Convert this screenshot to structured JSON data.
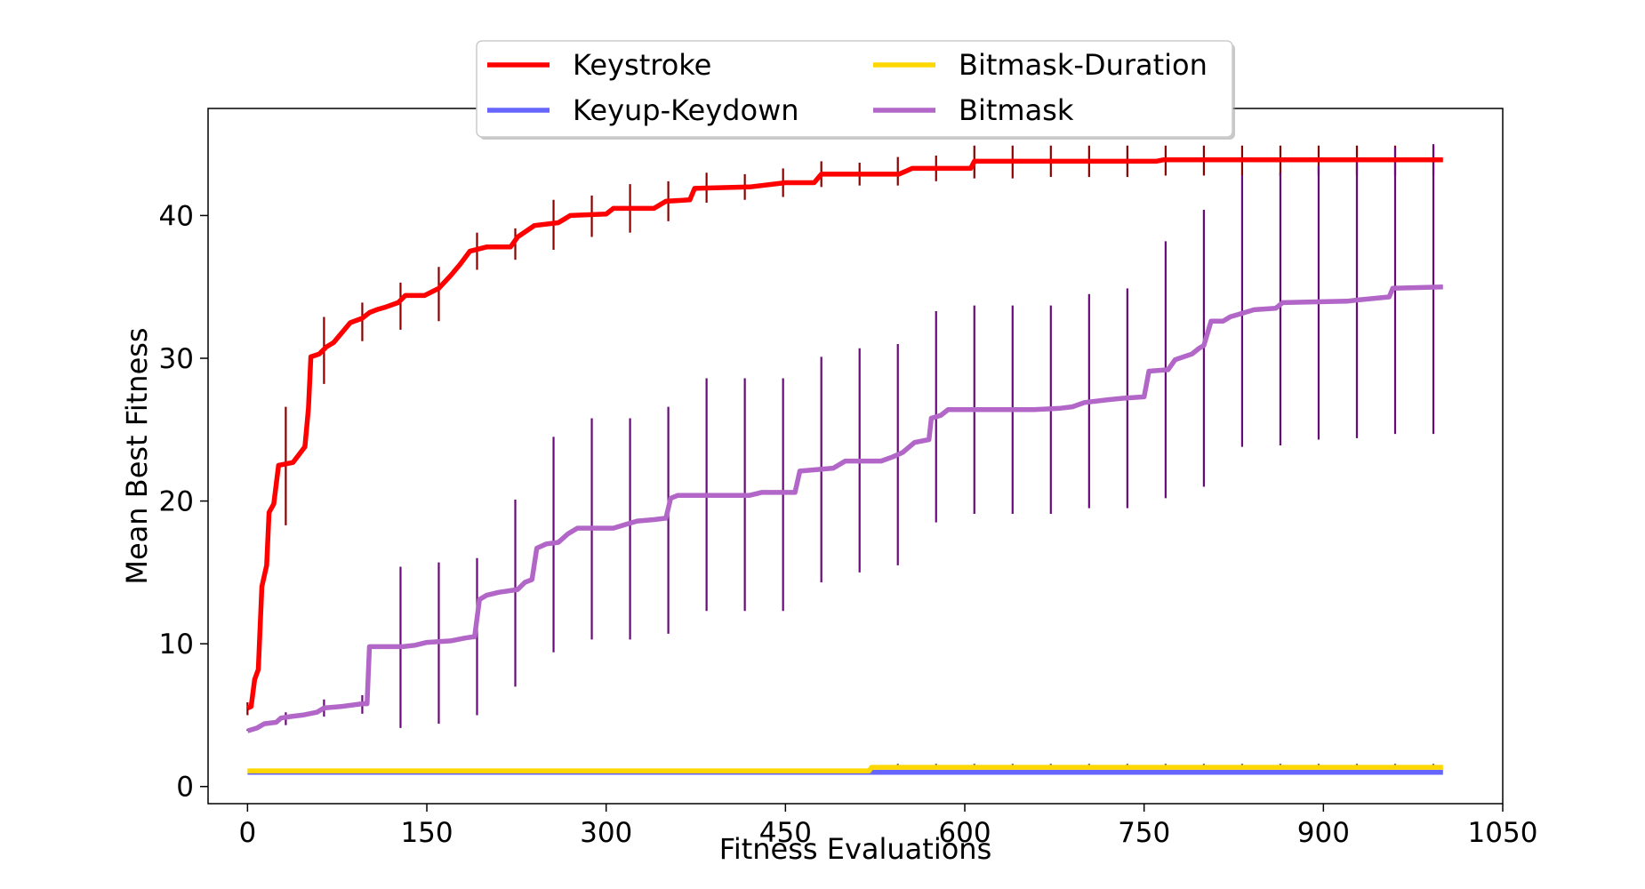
{
  "chart_data": {
    "type": "line",
    "title": "",
    "xlabel": "Fitness Evaluations",
    "ylabel": "Mean Best Fitness",
    "xlim": [
      -33,
      1050
    ],
    "ylim": [
      -1.2,
      47.5
    ],
    "xticks": [
      0,
      150,
      300,
      450,
      600,
      750,
      900,
      1050
    ],
    "yticks": [
      0,
      10,
      20,
      30,
      40
    ],
    "grid": false,
    "legend_position": "top-center",
    "error_bar_x": [
      0,
      32,
      64,
      96,
      128,
      160,
      192,
      224,
      256,
      288,
      320,
      352,
      384,
      416,
      448,
      480,
      512,
      544,
      576,
      608,
      640,
      672,
      704,
      736,
      768,
      800,
      832,
      864,
      896,
      928,
      960,
      992
    ],
    "series": [
      {
        "name": "Keystroke",
        "color": "#ff0000",
        "error_color": "#8b0000",
        "points": [
          [
            0,
            5.5
          ],
          [
            3,
            5.6
          ],
          [
            6,
            7.5
          ],
          [
            9,
            8.2
          ],
          [
            12,
            14.0
          ],
          [
            16,
            15.5
          ],
          [
            18,
            19.2
          ],
          [
            22,
            19.8
          ],
          [
            26,
            22.5
          ],
          [
            38,
            22.7
          ],
          [
            48,
            23.8
          ],
          [
            51,
            26.5
          ],
          [
            53,
            30.1
          ],
          [
            60,
            30.3
          ],
          [
            66,
            30.8
          ],
          [
            72,
            31.1
          ],
          [
            86,
            32.5
          ],
          [
            96,
            32.8
          ],
          [
            102,
            33.2
          ],
          [
            108,
            33.4
          ],
          [
            116,
            33.6
          ],
          [
            126,
            33.9
          ],
          [
            132,
            34.4
          ],
          [
            148,
            34.4
          ],
          [
            160,
            34.9
          ],
          [
            170,
            35.8
          ],
          [
            178,
            36.6
          ],
          [
            186,
            37.5
          ],
          [
            200,
            37.8
          ],
          [
            220,
            37.8
          ],
          [
            226,
            38.5
          ],
          [
            240,
            39.3
          ],
          [
            260,
            39.5
          ],
          [
            270,
            40.0
          ],
          [
            300,
            40.1
          ],
          [
            306,
            40.5
          ],
          [
            340,
            40.5
          ],
          [
            350,
            41.0
          ],
          [
            370,
            41.1
          ],
          [
            374,
            41.9
          ],
          [
            420,
            42.0
          ],
          [
            450,
            42.3
          ],
          [
            474,
            42.3
          ],
          [
            480,
            42.9
          ],
          [
            545,
            42.9
          ],
          [
            556,
            43.3
          ],
          [
            605,
            43.3
          ],
          [
            608,
            43.8
          ],
          [
            760,
            43.8
          ],
          [
            766,
            43.9
          ],
          [
            1000,
            43.9
          ]
        ],
        "error_bars": [
          [
            5.0,
            5.9
          ],
          [
            18.3,
            26.6
          ],
          [
            28.2,
            32.9
          ],
          [
            31.2,
            33.9
          ],
          [
            32.0,
            35.3
          ],
          [
            32.6,
            36.4
          ],
          [
            36.2,
            38.8
          ],
          [
            36.9,
            39.1
          ],
          [
            37.6,
            41.1
          ],
          [
            38.5,
            41.4
          ],
          [
            38.8,
            42.2
          ],
          [
            39.6,
            42.4
          ],
          [
            40.9,
            43.0
          ],
          [
            41.1,
            42.9
          ],
          [
            41.3,
            43.3
          ],
          [
            42.0,
            43.8
          ],
          [
            42.1,
            43.7
          ],
          [
            42.1,
            44.1
          ],
          [
            42.4,
            44.2
          ],
          [
            42.6,
            44.9
          ],
          [
            42.6,
            44.9
          ],
          [
            42.7,
            44.9
          ],
          [
            42.7,
            44.9
          ],
          [
            42.7,
            44.9
          ],
          [
            42.8,
            44.9
          ],
          [
            42.8,
            44.9
          ],
          [
            42.8,
            44.9
          ],
          [
            42.8,
            44.9
          ],
          [
            42.8,
            44.9
          ],
          [
            42.8,
            44.9
          ],
          [
            42.8,
            44.9
          ],
          [
            42.8,
            44.9
          ]
        ]
      },
      {
        "name": "Keyup-Keydown",
        "color": "#6666ff",
        "error_color": "#00008b",
        "points": [
          [
            0,
            1.0
          ],
          [
            1000,
            1.0
          ]
        ],
        "error_bars": []
      },
      {
        "name": "Bitmask-Duration",
        "color": "#ffd700",
        "error_color": "#666666",
        "points": [
          [
            0,
            1.1
          ],
          [
            520,
            1.1
          ],
          [
            522,
            1.35
          ],
          [
            1000,
            1.35
          ]
        ],
        "error_bars": [
          [
            1.1,
            1.1
          ],
          [
            1.1,
            1.1
          ],
          [
            1.1,
            1.1
          ],
          [
            1.1,
            1.1
          ],
          [
            1.1,
            1.1
          ],
          [
            1.1,
            1.1
          ],
          [
            1.1,
            1.1
          ],
          [
            1.1,
            1.1
          ],
          [
            1.1,
            1.1
          ],
          [
            1.1,
            1.1
          ],
          [
            1.1,
            1.1
          ],
          [
            1.1,
            1.1
          ],
          [
            1.1,
            1.1
          ],
          [
            1.1,
            1.1
          ],
          [
            1.1,
            1.1
          ],
          [
            1.1,
            1.1
          ],
          [
            1.1,
            1.1
          ],
          [
            1.35,
            1.6
          ],
          [
            1.35,
            1.6
          ],
          [
            1.35,
            1.6
          ],
          [
            1.35,
            1.6
          ],
          [
            1.35,
            1.6
          ],
          [
            1.35,
            1.6
          ],
          [
            1.35,
            1.6
          ],
          [
            1.35,
            1.6
          ],
          [
            1.35,
            1.6
          ],
          [
            1.35,
            1.6
          ],
          [
            1.35,
            1.6
          ],
          [
            1.35,
            1.6
          ],
          [
            1.35,
            1.6
          ],
          [
            1.35,
            1.6
          ],
          [
            1.35,
            1.6
          ]
        ]
      },
      {
        "name": "Bitmask",
        "color": "#b266c8",
        "error_color": "#6a0a7a",
        "points": [
          [
            0,
            3.9
          ],
          [
            8,
            4.1
          ],
          [
            14,
            4.4
          ],
          [
            24,
            4.5
          ],
          [
            28,
            4.8
          ],
          [
            36,
            4.9
          ],
          [
            46,
            5.0
          ],
          [
            58,
            5.2
          ],
          [
            64,
            5.5
          ],
          [
            78,
            5.6
          ],
          [
            96,
            5.8
          ],
          [
            100,
            5.8
          ],
          [
            102,
            9.8
          ],
          [
            130,
            9.8
          ],
          [
            140,
            9.9
          ],
          [
            150,
            10.1
          ],
          [
            170,
            10.2
          ],
          [
            182,
            10.4
          ],
          [
            190,
            10.5
          ],
          [
            194,
            13.1
          ],
          [
            200,
            13.4
          ],
          [
            210,
            13.6
          ],
          [
            226,
            13.8
          ],
          [
            232,
            14.3
          ],
          [
            238,
            14.5
          ],
          [
            242,
            16.7
          ],
          [
            250,
            17.0
          ],
          [
            260,
            17.1
          ],
          [
            268,
            17.7
          ],
          [
            276,
            18.1
          ],
          [
            306,
            18.1
          ],
          [
            318,
            18.4
          ],
          [
            326,
            18.6
          ],
          [
            340,
            18.7
          ],
          [
            350,
            18.8
          ],
          [
            354,
            20.2
          ],
          [
            360,
            20.4
          ],
          [
            420,
            20.4
          ],
          [
            430,
            20.6
          ],
          [
            458,
            20.6
          ],
          [
            462,
            22.1
          ],
          [
            490,
            22.3
          ],
          [
            500,
            22.8
          ],
          [
            530,
            22.8
          ],
          [
            540,
            23.1
          ],
          [
            548,
            23.4
          ],
          [
            558,
            24.1
          ],
          [
            570,
            24.3
          ],
          [
            572,
            25.8
          ],
          [
            580,
            26.0
          ],
          [
            586,
            26.4
          ],
          [
            658,
            26.4
          ],
          [
            680,
            26.5
          ],
          [
            690,
            26.6
          ],
          [
            700,
            26.9
          ],
          [
            720,
            27.1
          ],
          [
            732,
            27.2
          ],
          [
            750,
            27.3
          ],
          [
            754,
            29.1
          ],
          [
            770,
            29.2
          ],
          [
            776,
            29.9
          ],
          [
            790,
            30.3
          ],
          [
            796,
            30.7
          ],
          [
            800,
            30.9
          ],
          [
            806,
            32.6
          ],
          [
            816,
            32.6
          ],
          [
            822,
            32.9
          ],
          [
            834,
            33.2
          ],
          [
            842,
            33.4
          ],
          [
            860,
            33.5
          ],
          [
            866,
            33.9
          ],
          [
            920,
            34.0
          ],
          [
            930,
            34.1
          ],
          [
            955,
            34.3
          ],
          [
            958,
            34.9
          ],
          [
            1000,
            35.0
          ]
        ],
        "error_bars": [
          [
            3.9,
            4.0
          ],
          [
            4.3,
            5.2
          ],
          [
            4.9,
            6.1
          ],
          [
            5.1,
            6.4
          ],
          [
            4.1,
            15.4
          ],
          [
            4.4,
            15.7
          ],
          [
            5.0,
            16.0
          ],
          [
            7.0,
            20.1
          ],
          [
            9.4,
            24.5
          ],
          [
            10.3,
            25.8
          ],
          [
            10.3,
            25.8
          ],
          [
            10.7,
            26.6
          ],
          [
            12.3,
            28.6
          ],
          [
            12.3,
            28.6
          ],
          [
            12.3,
            28.6
          ],
          [
            14.3,
            30.1
          ],
          [
            15.0,
            30.7
          ],
          [
            15.5,
            31.0
          ],
          [
            18.5,
            33.3
          ],
          [
            19.1,
            33.7
          ],
          [
            19.1,
            33.7
          ],
          [
            19.1,
            33.7
          ],
          [
            19.5,
            34.5
          ],
          [
            19.5,
            34.9
          ],
          [
            20.2,
            38.2
          ],
          [
            21.0,
            40.4
          ],
          [
            23.8,
            42.8
          ],
          [
            23.9,
            43.0
          ],
          [
            24.3,
            43.5
          ],
          [
            24.4,
            43.9
          ],
          [
            24.7,
            44.8
          ],
          [
            24.7,
            45.0
          ]
        ]
      }
    ]
  }
}
